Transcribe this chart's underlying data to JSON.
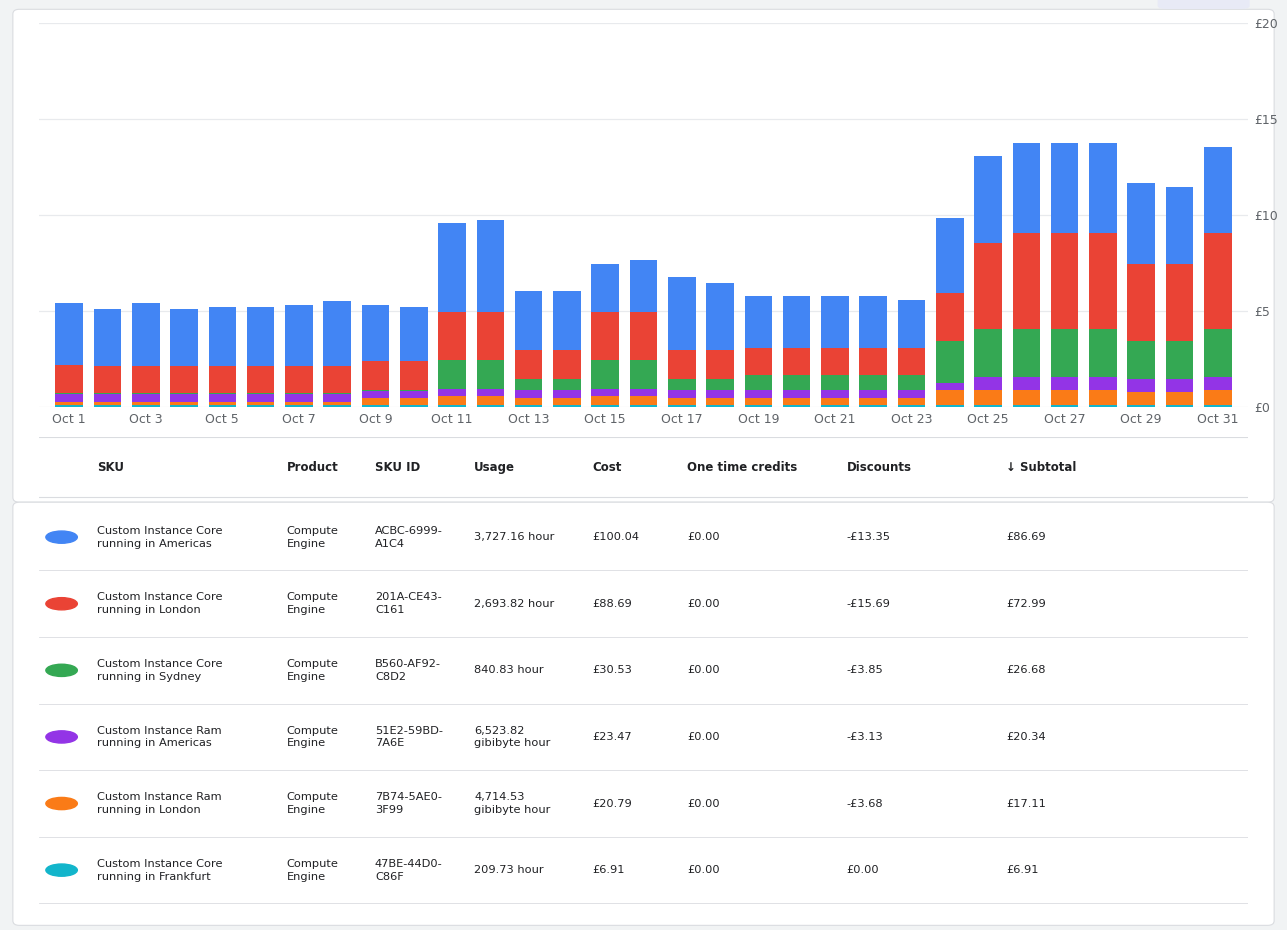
{
  "colors_bottom_to_top": [
    "#12B5CB",
    "#FA7B17",
    "#9334E6",
    "#34A853",
    "#EA4335",
    "#4285F4"
  ],
  "bar_data_bottom_to_top": [
    [
      0.1,
      0.1,
      0.1,
      0.1,
      0.1,
      0.1,
      0.1,
      0.1,
      0.1,
      0.1,
      0.1,
      0.1,
      0.1,
      0.1,
      0.1,
      0.1,
      0.1,
      0.1,
      0.1,
      0.1,
      0.1,
      0.1,
      0.1,
      0.1,
      0.1,
      0.1,
      0.1,
      0.1,
      0.1,
      0.1,
      0.1
    ],
    [
      0.2,
      0.2,
      0.2,
      0.2,
      0.2,
      0.2,
      0.2,
      0.2,
      0.38,
      0.38,
      0.5,
      0.5,
      0.4,
      0.4,
      0.5,
      0.5,
      0.4,
      0.4,
      0.4,
      0.4,
      0.4,
      0.4,
      0.4,
      0.8,
      0.8,
      0.8,
      0.8,
      0.8,
      0.7,
      0.7,
      0.8
    ],
    [
      0.38,
      0.38,
      0.38,
      0.38,
      0.38,
      0.38,
      0.38,
      0.38,
      0.38,
      0.38,
      0.38,
      0.38,
      0.38,
      0.38,
      0.38,
      0.38,
      0.38,
      0.38,
      0.38,
      0.38,
      0.38,
      0.38,
      0.38,
      0.38,
      0.68,
      0.68,
      0.68,
      0.68,
      0.68,
      0.68,
      0.68
    ],
    [
      0.05,
      0.05,
      0.05,
      0.05,
      0.05,
      0.05,
      0.05,
      0.05,
      0.05,
      0.05,
      1.5,
      1.5,
      0.6,
      0.6,
      1.5,
      1.5,
      0.6,
      0.6,
      0.8,
      0.8,
      0.8,
      0.8,
      0.8,
      2.2,
      2.5,
      2.5,
      2.5,
      2.5,
      2.0,
      2.0,
      2.5
    ],
    [
      1.5,
      1.4,
      1.4,
      1.4,
      1.4,
      1.4,
      1.4,
      1.4,
      1.5,
      1.5,
      2.5,
      2.5,
      1.5,
      1.5,
      2.5,
      2.5,
      1.5,
      1.5,
      1.4,
      1.4,
      1.4,
      1.4,
      1.4,
      2.5,
      4.5,
      5.0,
      5.0,
      5.0,
      4.0,
      4.0,
      5.0
    ],
    [
      3.2,
      3.0,
      3.3,
      3.0,
      3.1,
      3.1,
      3.2,
      3.4,
      2.9,
      2.8,
      4.6,
      4.8,
      3.1,
      3.1,
      2.5,
      2.7,
      3.8,
      3.5,
      2.7,
      2.7,
      2.7,
      2.7,
      2.5,
      3.9,
      4.5,
      4.7,
      4.7,
      4.7,
      4.2,
      4.0,
      4.5
    ]
  ],
  "x_tick_positions": [
    0,
    2,
    4,
    6,
    8,
    10,
    12,
    14,
    16,
    18,
    20,
    22,
    24,
    26,
    28,
    30
  ],
  "x_tick_labels": [
    "Oct 1",
    "Oct 3",
    "Oct 5",
    "Oct 7",
    "Oct 9",
    "Oct 11",
    "Oct 13",
    "Oct 15",
    "Oct 17",
    "Oct 19",
    "Oct 21",
    "Oct 23",
    "Oct 25",
    "Oct 27",
    "Oct 29",
    "Oct 31"
  ],
  "yticks": [
    0,
    5,
    10,
    15,
    20
  ],
  "ytick_labels": [
    "£0",
    "£5",
    "£10",
    "£15",
    "£20"
  ],
  "ylim": [
    0,
    20
  ],
  "bar_width": 0.72,
  "background_color": "#f1f3f4",
  "card_color": "#ffffff",
  "card_edge_color": "#dadce0",
  "grid_color": "#e8eaed",
  "axis_label_color": "#5f6368",
  "table_rows": [
    {
      "color": "#4285F4",
      "sku": "Custom Instance Core\nrunning in Americas",
      "product": "Compute\nEngine",
      "sku_id": "ACBC-6999-\nA1C4",
      "usage": "3,727.16 hour",
      "cost": "£100.04",
      "one_time": "£0.00",
      "discounts": "-£13.35",
      "subtotal": "£86.69"
    },
    {
      "color": "#EA4335",
      "sku": "Custom Instance Core\nrunning in London",
      "product": "Compute\nEngine",
      "sku_id": "201A-CE43-\nC161",
      "usage": "2,693.82 hour",
      "cost": "£88.69",
      "one_time": "£0.00",
      "discounts": "-£15.69",
      "subtotal": "£72.99"
    },
    {
      "color": "#34A853",
      "sku": "Custom Instance Core\nrunning in Sydney",
      "product": "Compute\nEngine",
      "sku_id": "B560-AF92-\nC8D2",
      "usage": "840.83 hour",
      "cost": "£30.53",
      "one_time": "£0.00",
      "discounts": "-£3.85",
      "subtotal": "£26.68"
    },
    {
      "color": "#9334E6",
      "sku": "Custom Instance Ram\nrunning in Americas",
      "product": "Compute\nEngine",
      "sku_id": "51E2-59BD-\n7A6E",
      "usage": "6,523.82\ngibibyte hour",
      "cost": "£23.47",
      "one_time": "£0.00",
      "discounts": "-£3.13",
      "subtotal": "£20.34"
    },
    {
      "color": "#FA7B17",
      "sku": "Custom Instance Ram\nrunning in London",
      "product": "Compute\nEngine",
      "sku_id": "7B74-5AE0-\n3F99",
      "usage": "4,714.53\ngibibyte hour",
      "cost": "£20.79",
      "one_time": "£0.00",
      "discounts": "-£3.68",
      "subtotal": "£17.11"
    },
    {
      "color": "#12B5CB",
      "sku": "Custom Instance Core\nrunning in Frankfurt",
      "product": "Compute\nEngine",
      "sku_id": "47BE-44D0-\nC86F",
      "usage": "209.73 hour",
      "cost": "£6.91",
      "one_time": "£0.00",
      "discounts": "£0.00",
      "subtotal": "£6.91"
    }
  ]
}
